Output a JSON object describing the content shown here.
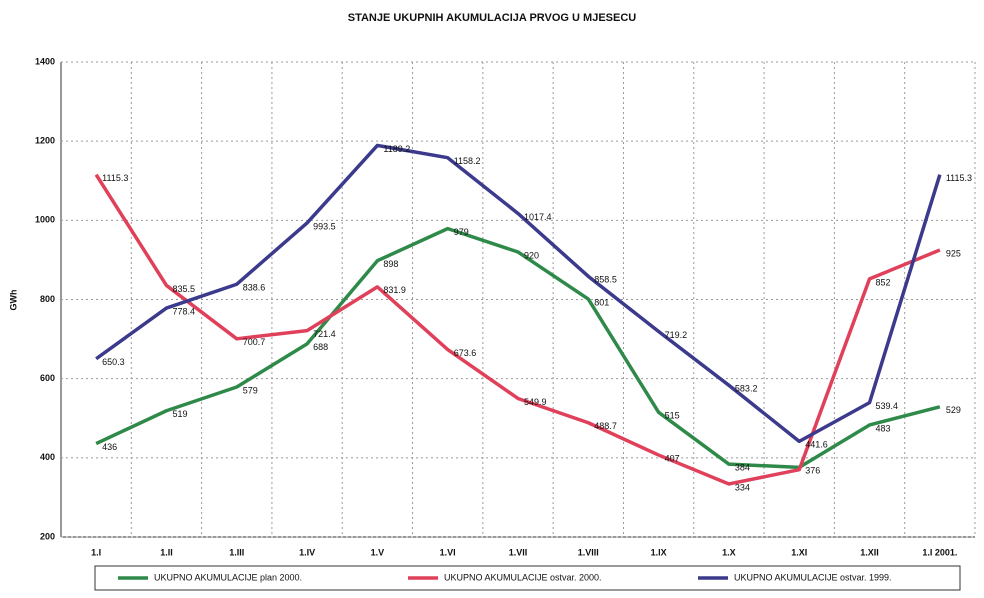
{
  "chart_data": {
    "type": "line",
    "title": "STANJE UKUPNIH AKUMULACIJA PRVOG U MJESECU",
    "ylabel": "GWh",
    "categories": [
      "1.I",
      "1.II",
      "1.III",
      "1.IV",
      "1.V",
      "1.VI",
      "1.VII",
      "1.VIII",
      "1.IX",
      "1.X",
      "1.XI",
      "1.XII",
      "1.I 2001."
    ],
    "series": [
      {
        "name": "UKUPNO AKUMULACIJE plan 2000.",
        "color": "#2f8a4a",
        "values": [
          436,
          519,
          579,
          688,
          898,
          979,
          920,
          801,
          515,
          384,
          376,
          483,
          529
        ]
      },
      {
        "name": "UKUPNO AKUMULACIJE ostvar. 2000.",
        "color": "#e0405a",
        "values": [
          1115.3,
          835.5,
          700.7,
          721.4,
          831.9,
          673.6,
          549.9,
          488.7,
          407,
          334,
          370,
          852,
          925
        ],
        "value_labels": [
          "1115.3",
          "835.5",
          "700.7",
          "721.4",
          "831.9",
          "673.6",
          "549.9",
          "488.7",
          "407",
          "334",
          null,
          "852",
          "925"
        ]
      },
      {
        "name": "UKUPNO AKUMULACIJE ostvar. 1999.",
        "color": "#3b3a8c",
        "values": [
          650.3,
          778.4,
          838.6,
          993.5,
          1189.2,
          1158.2,
          1017.4,
          858.5,
          719.2,
          583.2,
          441.6,
          539.4,
          1115.3
        ]
      }
    ],
    "ylim": [
      200,
      1400
    ],
    "yticks": [
      200,
      400,
      600,
      800,
      1000,
      1200,
      1400
    ],
    "grid": true,
    "legend": "bottom"
  }
}
